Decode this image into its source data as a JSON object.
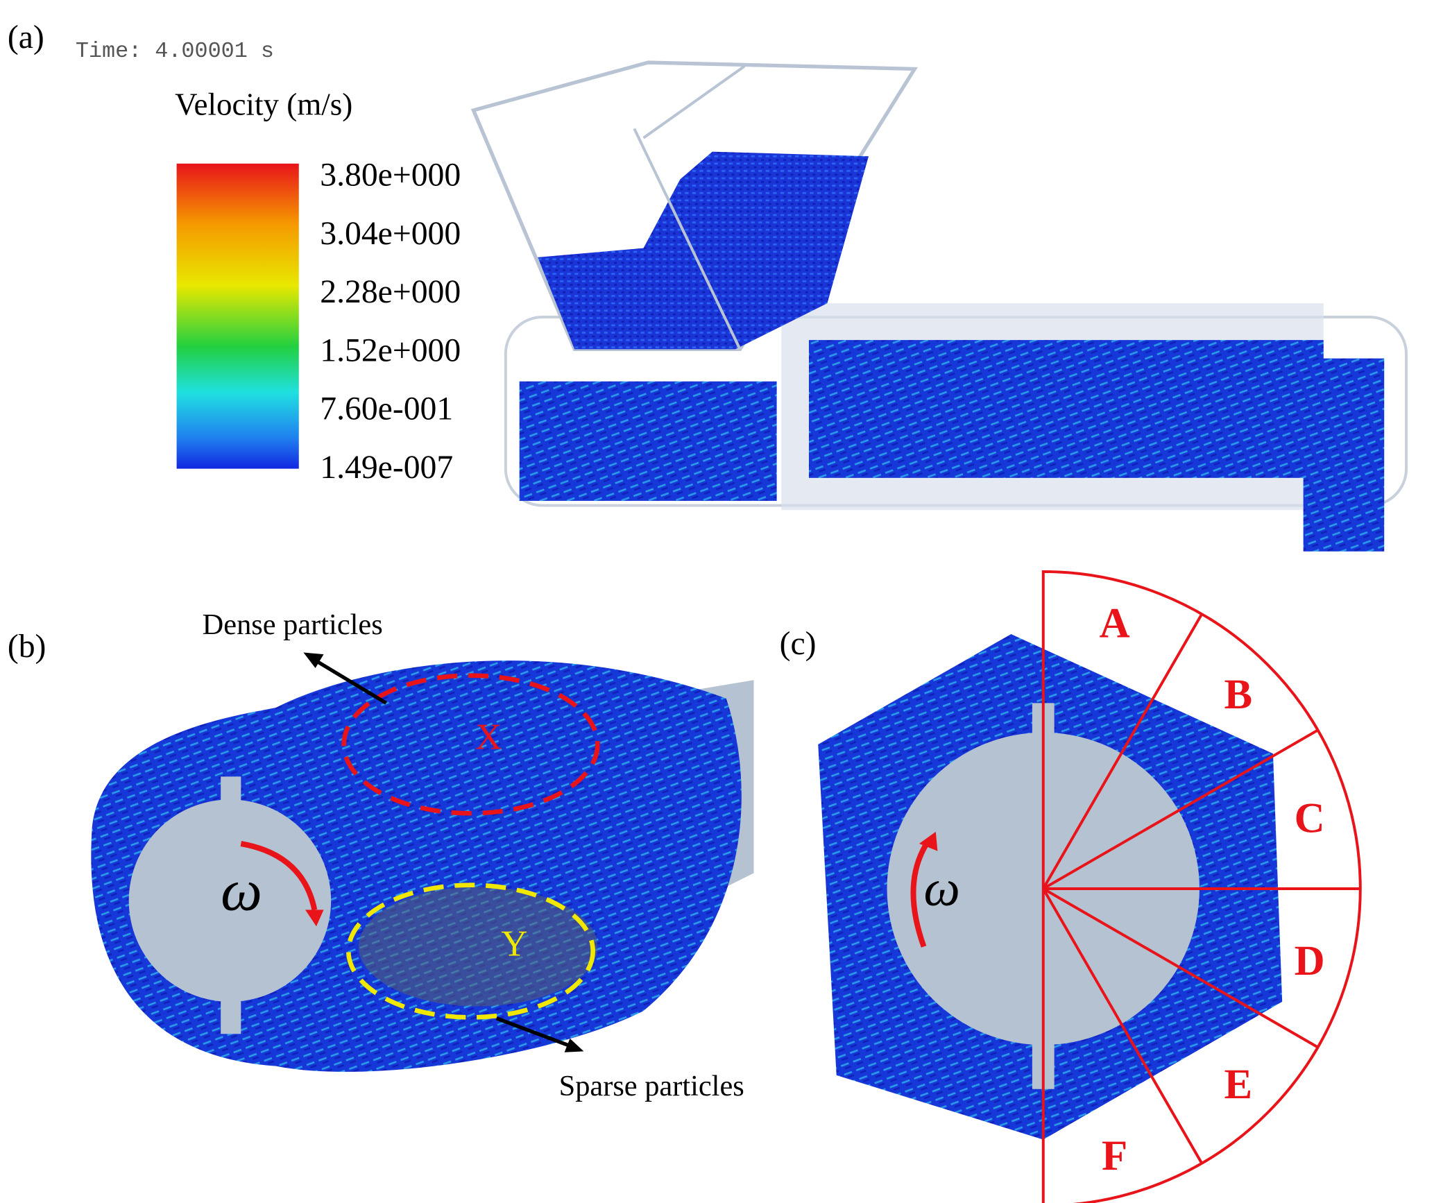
{
  "panels": {
    "a": {
      "label": "(a)",
      "time": "Time: 4.00001 s",
      "colorbar": {
        "title": "Velocity (m/s)",
        "ticks": [
          "3.80e+000",
          "3.04e+000",
          "2.28e+000",
          "1.52e+000",
          "7.60e-001",
          "1.49e-007"
        ]
      }
    },
    "b": {
      "label": "(b)",
      "annotations": {
        "dense": "Dense particles",
        "sparse": "Sparse particles",
        "x": "X",
        "y": "Y",
        "omega": "ω"
      }
    },
    "c": {
      "label": "(c)",
      "omega": "ω",
      "sectors": [
        "A",
        "B",
        "C",
        "D",
        "E",
        "F"
      ]
    }
  }
}
